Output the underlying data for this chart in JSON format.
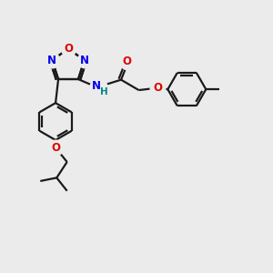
{
  "bg_color": "#ebebeb",
  "bond_color": "#1a1a1a",
  "N_color": "#0000ee",
  "O_color": "#dd0000",
  "NH_color": "#008888",
  "line_width": 1.6,
  "font_size": 8.5,
  "fig_size": [
    3.0,
    3.0
  ],
  "dpi": 100,
  "xlim": [
    0,
    10
  ],
  "ylim": [
    0,
    10
  ]
}
